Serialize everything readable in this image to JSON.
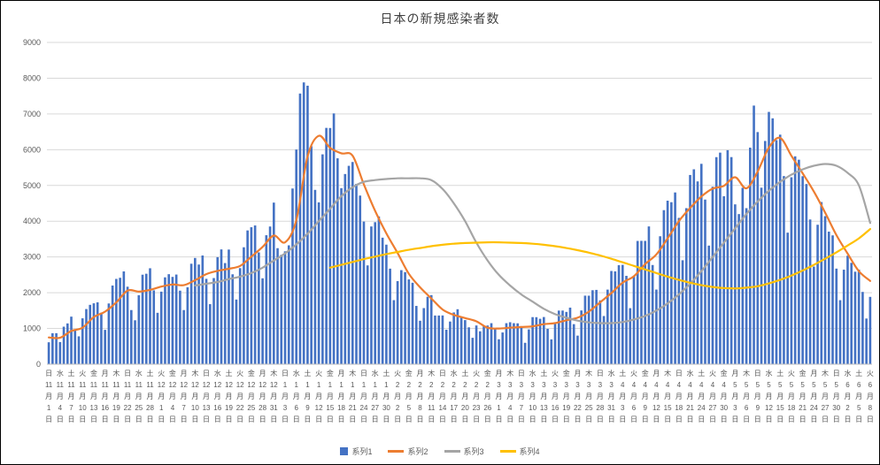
{
  "chart_data": {
    "type": "combo-bar-line",
    "title": "日本の新規感染者数",
    "y_axis": {
      "min": 0,
      "max": 9000,
      "step": 1000,
      "tick_labels": [
        "0",
        "1000",
        "2000",
        "3000",
        "4000",
        "5000",
        "6000",
        "7000",
        "8000",
        "9000"
      ],
      "grid": true
    },
    "x_axis": {
      "tick_every_days": 3,
      "month_suffix": "月",
      "day_suffix": "日",
      "ticks": [
        [
          "日",
          11,
          1
        ],
        [
          "水",
          11,
          4
        ],
        [
          "土",
          11,
          7
        ],
        [
          "火",
          11,
          10
        ],
        [
          "金",
          11,
          13
        ],
        [
          "月",
          11,
          16
        ],
        [
          "木",
          11,
          19
        ],
        [
          "日",
          11,
          22
        ],
        [
          "水",
          11,
          25
        ],
        [
          "土",
          11,
          28
        ],
        [
          "火",
          12,
          1
        ],
        [
          "金",
          12,
          4
        ],
        [
          "月",
          12,
          7
        ],
        [
          "木",
          12,
          10
        ],
        [
          "日",
          12,
          13
        ],
        [
          "水",
          12,
          16
        ],
        [
          "土",
          12,
          19
        ],
        [
          "火",
          12,
          22
        ],
        [
          "金",
          12,
          25
        ],
        [
          "月",
          12,
          28
        ],
        [
          "木",
          12,
          31
        ],
        [
          "日",
          1,
          3
        ],
        [
          "水",
          1,
          6
        ],
        [
          "土",
          1,
          9
        ],
        [
          "火",
          1,
          12
        ],
        [
          "金",
          1,
          15
        ],
        [
          "月",
          1,
          18
        ],
        [
          "木",
          1,
          21
        ],
        [
          "日",
          1,
          24
        ],
        [
          "水",
          1,
          27
        ],
        [
          "土",
          1,
          30
        ],
        [
          "火",
          2,
          2
        ],
        [
          "金",
          2,
          5
        ],
        [
          "月",
          2,
          8
        ],
        [
          "木",
          2,
          11
        ],
        [
          "日",
          2,
          14
        ],
        [
          "水",
          2,
          17
        ],
        [
          "土",
          2,
          20
        ],
        [
          "火",
          2,
          23
        ],
        [
          "金",
          2,
          26
        ],
        [
          "月",
          3,
          1
        ],
        [
          "木",
          3,
          4
        ],
        [
          "日",
          3,
          7
        ],
        [
          "水",
          3,
          10
        ],
        [
          "土",
          3,
          13
        ],
        [
          "火",
          3,
          16
        ],
        [
          "金",
          3,
          19
        ],
        [
          "月",
          3,
          22
        ],
        [
          "木",
          3,
          25
        ],
        [
          "日",
          3,
          28
        ],
        [
          "水",
          3,
          31
        ],
        [
          "土",
          4,
          3
        ],
        [
          "火",
          4,
          6
        ],
        [
          "金",
          4,
          9
        ],
        [
          "月",
          4,
          12
        ],
        [
          "木",
          4,
          15
        ],
        [
          "日",
          4,
          18
        ],
        [
          "水",
          4,
          21
        ],
        [
          "土",
          4,
          24
        ],
        [
          "火",
          4,
          27
        ],
        [
          "金",
          4,
          30
        ],
        [
          "月",
          5,
          3
        ],
        [
          "木",
          5,
          6
        ],
        [
          "日",
          5,
          9
        ],
        [
          "水",
          5,
          12
        ],
        [
          "土",
          5,
          15
        ],
        [
          "火",
          5,
          18
        ],
        [
          "金",
          5,
          21
        ],
        [
          "月",
          5,
          24
        ],
        [
          "木",
          5,
          27
        ],
        [
          "日",
          5,
          30
        ],
        [
          "水",
          6,
          2
        ],
        [
          "土",
          6,
          5
        ],
        [
          "火",
          6,
          8
        ]
      ]
    },
    "legend": {
      "position": "bottom",
      "entries": [
        "系列1",
        "系列2",
        "系列3",
        "系列4"
      ]
    },
    "series": [
      {
        "name": "系列1",
        "type": "bar",
        "color": "#4472C4",
        "start_index": 0,
        "step": 1,
        "values": [
          614,
          867,
          868,
          620,
          1050,
          1141,
          1331,
          957,
          780,
          1284,
          1543,
          1661,
          1704,
          1731,
          1440,
          961,
          1699,
          2201,
          2386,
          2418,
          2596,
          2168,
          1515,
          1229,
          1930,
          2504,
          2531,
          2684,
          2066,
          1438,
          2030,
          2430,
          2518,
          2442,
          2508,
          2058,
          1515,
          2152,
          2811,
          2972,
          2788,
          3041,
          2388,
          1680,
          2410,
          2994,
          3211,
          2829,
          3207,
          2515,
          1809,
          2688,
          3271,
          3742,
          3832,
          3881,
          3127,
          2403,
          3608,
          3852,
          4520,
          3246,
          3059,
          3158,
          3325,
          4915,
          6004,
          7571,
          7882,
          7790,
          6097,
          4876,
          4527,
          5870,
          6610,
          6607,
          7014,
          5759,
          4925,
          5320,
          5549,
          5656,
          5045,
          4717,
          3990,
          2764,
          3853,
          3973,
          4133,
          3539,
          3344,
          2673,
          1792,
          2324,
          2631,
          2576,
          2372,
          2279,
          1631,
          1216,
          1570,
          1887,
          1933,
          1362,
          1362,
          1364,
          965,
          1194,
          1448,
          1538,
          1301,
          1234,
          1032,
          739,
          1084,
          921,
          1076,
          1083,
          1148,
          999,
          698,
          888,
          1148,
          1174,
          1148,
          1144,
          1065,
          599,
          974,
          1317,
          1316,
          1271,
          1320,
          989,
          695,
          1133,
          1500,
          1501,
          1463,
          1583,
          1121,
          800,
          1504,
          1918,
          1917,
          2070,
          2079,
          1785,
          1348,
          2087,
          2608,
          2597,
          2770,
          2779,
          2472,
          1568,
          2446,
          3448,
          3451,
          3450,
          3854,
          2775,
          2088,
          3579,
          4309,
          4574,
          4532,
          4804,
          4093,
          2908,
          4365,
          5293,
          5452,
          5113,
          5605,
          4605,
          3318,
          4964,
          5792,
          5918,
          4698,
          5986,
          5793,
          4471,
          4199,
          4934,
          4365,
          6058,
          7234,
          6493,
          4938,
          6244,
          7057,
          6877,
          6267,
          6421,
          5262,
          3680,
          5229,
          5814,
          5720,
          5259,
          5040,
          4048,
          2731,
          3901,
          4536,
          4141,
          3708,
          3604,
          2674,
          1791,
          2644,
          3035,
          2836,
          2588,
          2645,
          2022,
          1278,
          1884
        ]
      },
      {
        "name": "系列2",
        "type": "line",
        "color": "#ED7D31",
        "start_index": 0,
        "step": 3,
        "values": [
          750,
          740,
          930,
          1020,
          1320,
          1470,
          1730,
          2060,
          2030,
          2080,
          2170,
          2230,
          2210,
          2350,
          2520,
          2610,
          2670,
          2750,
          3010,
          3280,
          3600,
          3410,
          4030,
          5810,
          6390,
          6050,
          5900,
          5830,
          5030,
          4290,
          3660,
          3110,
          2530,
          2150,
          1840,
          1530,
          1380,
          1290,
          1200,
          1020,
          1000,
          1020,
          1040,
          1060,
          1120,
          1150,
          1230,
          1300,
          1470,
          1730,
          1990,
          2280,
          2460,
          2800,
          3070,
          3520,
          4000,
          4370,
          4690,
          4910,
          4990,
          5230,
          4920,
          5390,
          6060,
          6330,
          5830,
          5340,
          4830,
          4240,
          3610,
          3090,
          2600,
          2330
        ]
      },
      {
        "name": "系列3",
        "type": "line",
        "color": "#A5A5A5",
        "start_index": 39,
        "step": 3,
        "values": [
          2200,
          2250,
          2300,
          2380,
          2450,
          2550,
          2700,
          2900,
          3100,
          3350,
          3650,
          4000,
          4350,
          4700,
          4950,
          5100,
          5150,
          5180,
          5200,
          5200,
          5200,
          5150,
          4900,
          4500,
          4000,
          3400,
          2900,
          2500,
          2200,
          1950,
          1750,
          1550,
          1400,
          1300,
          1220,
          1170,
          1150,
          1150,
          1180,
          1250,
          1350,
          1500,
          1700,
          1950,
          2250,
          2600,
          3000,
          3400,
          3800,
          4200,
          4550,
          4850,
          5100,
          5300,
          5450,
          5550,
          5600,
          5550,
          5350,
          5000,
          3950
        ]
      },
      {
        "name": "系列4",
        "type": "line",
        "color": "#FFC000",
        "start_index": 75,
        "step": 3,
        "values": [
          2700,
          2780,
          2860,
          2940,
          3010,
          3080,
          3140,
          3200,
          3250,
          3300,
          3340,
          3370,
          3390,
          3400,
          3410,
          3410,
          3400,
          3390,
          3370,
          3340,
          3300,
          3250,
          3190,
          3120,
          3040,
          2950,
          2850,
          2750,
          2650,
          2550,
          2450,
          2360,
          2280,
          2210,
          2160,
          2130,
          2120,
          2140,
          2180,
          2260,
          2360,
          2480,
          2620,
          2780,
          2950,
          3130,
          3320,
          3520,
          3780
        ]
      }
    ],
    "style": {
      "grid_color": "#D9D9D9",
      "axis_line_color": "#BFBFBF",
      "axis_text_color": "#595959",
      "title_color": "#404040"
    }
  }
}
